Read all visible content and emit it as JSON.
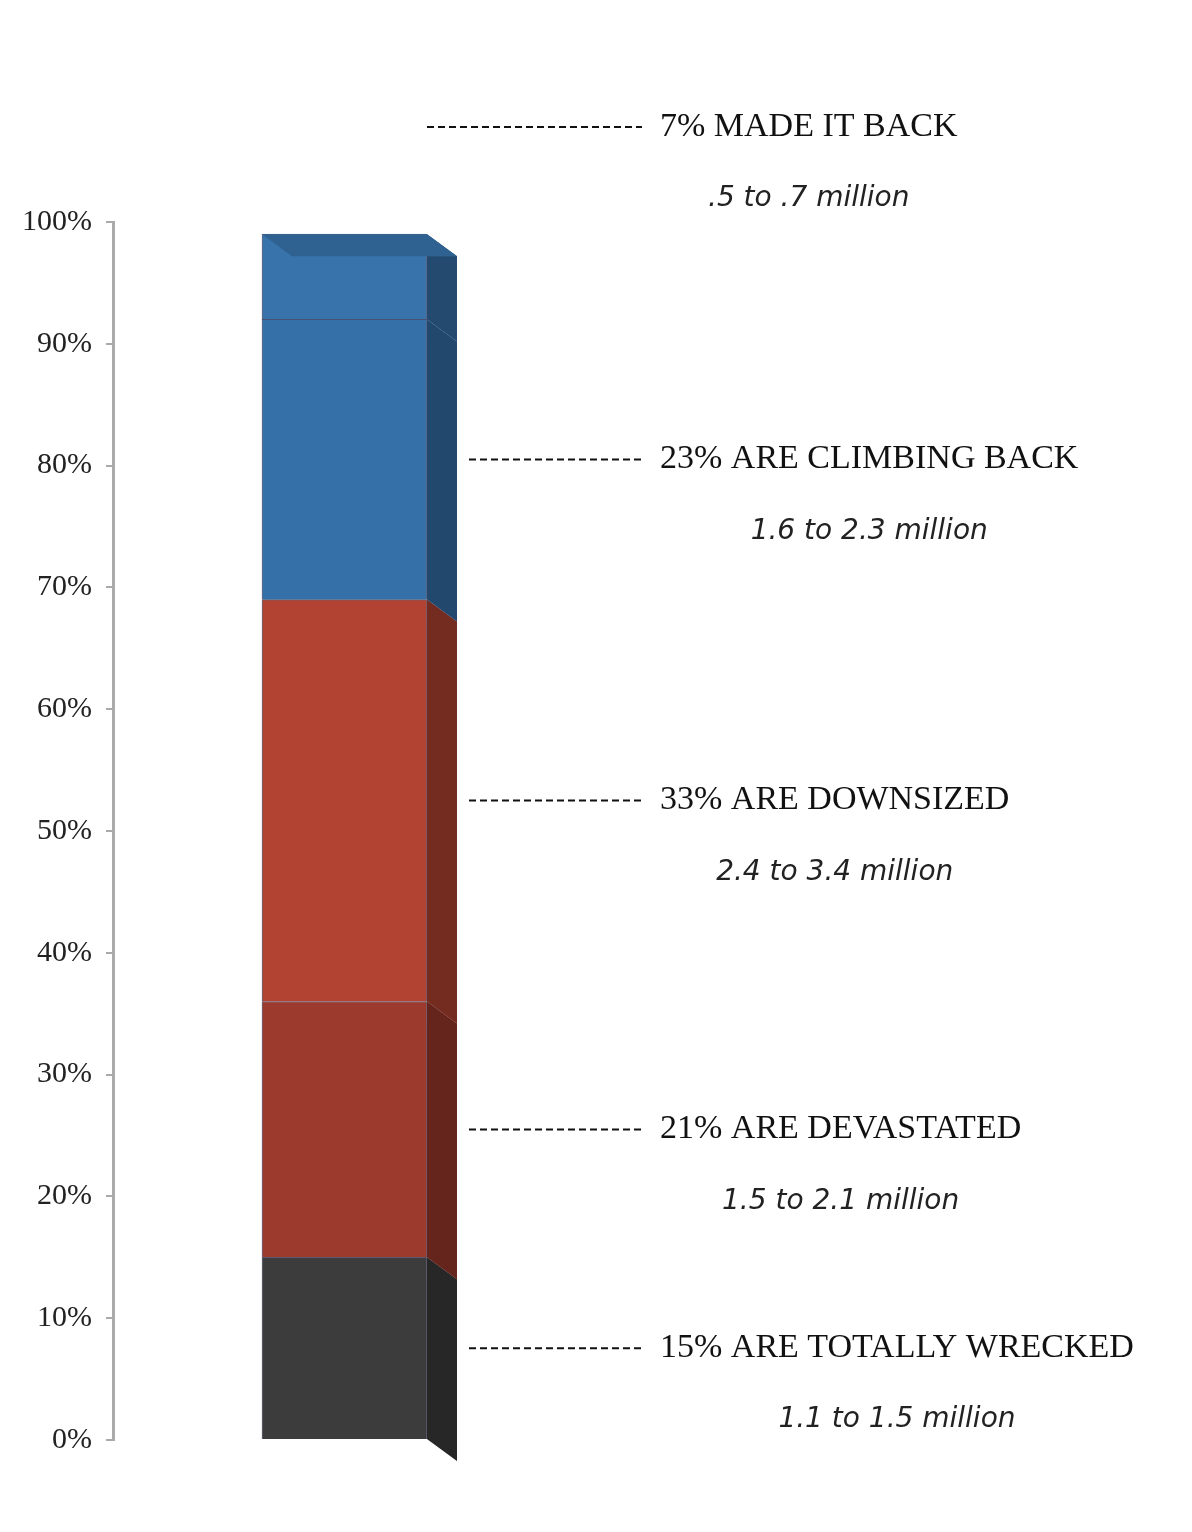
{
  "chart_data": {
    "type": "bar",
    "stacked": true,
    "categories": [
      null
    ],
    "ylim": [
      0,
      100
    ],
    "yticks": [
      {
        "value": 0,
        "label": "0%"
      },
      {
        "value": 10,
        "label": "10%"
      },
      {
        "value": 20,
        "label": "20%"
      },
      {
        "value": 30,
        "label": "30%"
      },
      {
        "value": 40,
        "label": "40%"
      },
      {
        "value": 50,
        "label": "50%"
      },
      {
        "value": 60,
        "label": "60%"
      },
      {
        "value": 70,
        "label": "70%"
      },
      {
        "value": 80,
        "label": "80%"
      },
      {
        "value": 90,
        "label": "90%"
      },
      {
        "value": 100,
        "label": "100%"
      }
    ],
    "grid": false,
    "series": [
      {
        "name": "15% ARE TOTALLY WRECKED",
        "note": "1.1 to 1.5 million",
        "color": "#3c3c3c",
        "values": [
          15
        ]
      },
      {
        "name": "21% ARE DEVASTATED",
        "note": "1.5 to 2.1 million",
        "color": "#9c3a2d",
        "values": [
          21
        ]
      },
      {
        "name": "33% ARE DOWNSIZED",
        "note": "2.4 to 3.4 million",
        "color": "#b24232",
        "values": [
          33
        ]
      },
      {
        "name": "23% ARE CLIMBING BACK",
        "note": "1.6 to 2.3 million",
        "color": "#3570a8",
        "values": [
          23
        ]
      },
      {
        "name": "7% MADE IT BACK",
        "note": ".5 to .7 million",
        "color": "#3873ab",
        "values": [
          7
        ]
      }
    ]
  }
}
